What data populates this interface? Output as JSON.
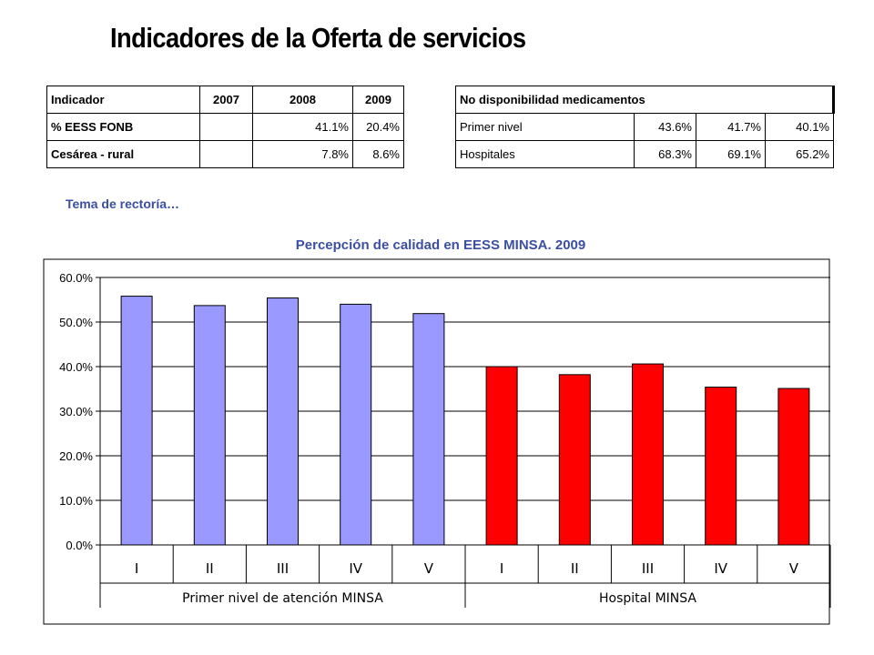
{
  "page": {
    "title": "Indicadores de la Oferta de servicios",
    "section_note": "Tema de rectoría…"
  },
  "table_left": {
    "headers": [
      "Indicador",
      "2007",
      "2008",
      "2009"
    ],
    "rows": [
      {
        "label": "% EESS FONB",
        "v2007": "",
        "v2008": "41.1%",
        "v2009": "20.4%"
      },
      {
        "label": "Cesárea - rural",
        "v2007": "",
        "v2008": "7.8%",
        "v2009": "8.6%"
      }
    ]
  },
  "table_right": {
    "header": "No disponibilidad medicamentos",
    "rows": [
      {
        "label": "Primer nivel",
        "v1": "43.6%",
        "v2": "41.7%",
        "v3": "40.1%"
      },
      {
        "label": "Hospitales",
        "v1": "68.3%",
        "v2": "69.1%",
        "v3": "65.2%"
      }
    ]
  },
  "chart_data": {
    "type": "bar",
    "title": "Percepción de calidad en EESS MINSA. 2009",
    "xlabel": "",
    "ylabel": "",
    "ylim": [
      0,
      0.6
    ],
    "yticks": [
      0,
      0.1,
      0.2,
      0.3,
      0.4,
      0.5,
      0.6
    ],
    "ytick_labels": [
      "0.0%",
      "10.0%",
      "20.0%",
      "30.0%",
      "40.0%",
      "50.0%",
      "60.0%"
    ],
    "grid": true,
    "categories": [
      "I",
      "II",
      "III",
      "IV",
      "V",
      "I",
      "II",
      "III",
      "IV",
      "V"
    ],
    "groups": [
      {
        "label": "Primer nivel de atención MINSA",
        "start": 0,
        "count": 5,
        "color": "#9999ff"
      },
      {
        "label": "Hospital MINSA",
        "start": 5,
        "count": 5,
        "color": "#ff0000"
      }
    ],
    "values": [
      0.558,
      0.537,
      0.554,
      0.54,
      0.519,
      0.4,
      0.382,
      0.406,
      0.354,
      0.351
    ],
    "bar_colors": [
      "#9999ff",
      "#9999ff",
      "#9999ff",
      "#9999ff",
      "#9999ff",
      "#ff0000",
      "#ff0000",
      "#ff0000",
      "#ff0000",
      "#ff0000"
    ]
  }
}
